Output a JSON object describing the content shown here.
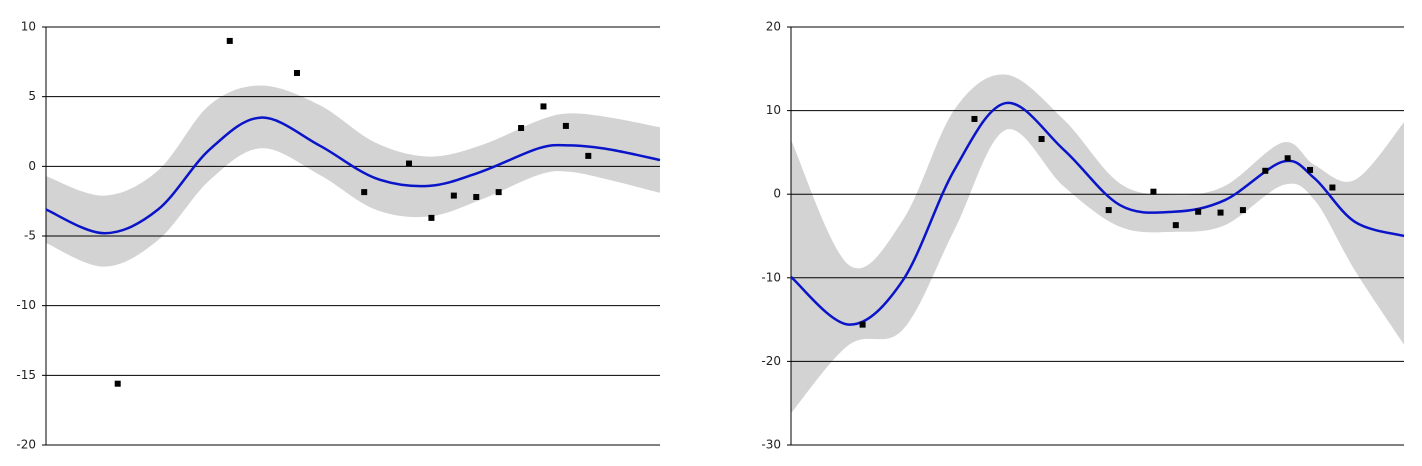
{
  "charts": [
    {
      "chart_data": {
        "type": "scatter",
        "ylim": [
          -20,
          10
        ],
        "yticks": [
          -20,
          -15,
          -10,
          -5,
          0,
          5,
          10
        ],
        "xlim": [
          -3.2,
          24.2
        ],
        "grid": true,
        "points": {
          "color": "#000000",
          "x": [
            0,
            5,
            8,
            11,
            13,
            14,
            15,
            16,
            17,
            18,
            19,
            20,
            21
          ],
          "y": [
            -15.6,
            9.0,
            6.7,
            -1.85,
            0.2,
            -3.7,
            -2.1,
            -2.2,
            -1.85,
            2.75,
            4.3,
            2.9,
            0.75
          ]
        },
        "fit": {
          "color": "#0a14c8",
          "band_color": "#d3d3d3",
          "x": [
            -3.2,
            -0.6,
            1.8,
            4.1,
            6.4,
            9,
            11.5,
            13.9,
            16.2,
            18.8,
            20.2,
            22,
            24.2
          ],
          "y": [
            -3.1,
            -4.8,
            -3.1,
            1.2,
            3.5,
            1.5,
            -0.85,
            -1.4,
            -0.4,
            1.3,
            1.5,
            1.2,
            0.45
          ],
          "upper": [
            -0.7,
            -2.1,
            -0.3,
            4.4,
            5.8,
            4.4,
            1.7,
            0.7,
            1.5,
            3.3,
            3.8,
            3.5,
            2.8
          ],
          "lower": [
            -5.5,
            -7.2,
            -5.3,
            -1,
            1.3,
            -0.6,
            -3.1,
            -3.6,
            -2.4,
            -0.6,
            -0.4,
            -1,
            -1.9
          ]
        }
      }
    },
    {
      "chart_data": {
        "type": "scatter",
        "ylim": [
          -30,
          20
        ],
        "yticks": [
          -30,
          -20,
          -10,
          0,
          10,
          20
        ],
        "xlim": [
          -3.2,
          24.2
        ],
        "grid": true,
        "points": {
          "color": "#000000",
          "x": [
            0,
            5,
            8,
            11,
            13,
            14,
            15,
            16,
            17,
            18,
            19,
            20,
            21
          ],
          "y": [
            -15.6,
            9.0,
            6.6,
            -1.9,
            0.3,
            -3.7,
            -2.1,
            -2.2,
            -1.9,
            2.8,
            4.3,
            2.9,
            0.8
          ]
        },
        "fit": {
          "color": "#0a14c8",
          "band_color": "#d3d3d3",
          "x": [
            -3.2,
            -0.6,
            1.8,
            4.1,
            6.4,
            9,
            11.5,
            13.9,
            16.2,
            18.8,
            20.2,
            22,
            24.2
          ],
          "y": [
            -9.9,
            -15.6,
            -10.3,
            2.9,
            10.9,
            5.3,
            -1.3,
            -2.1,
            -0.7,
            3.9,
            1.9,
            -3.3,
            -5
          ],
          "upper": [
            6.5,
            -8.5,
            -3.1,
            10.1,
            14.3,
            8.9,
            1.3,
            -0.1,
            1,
            6.2,
            3.5,
            1.7,
            8.6
          ],
          "lower": [
            -26.2,
            -18,
            -16.2,
            -4.3,
            7.7,
            0.9,
            -3.9,
            -4.5,
            -3.7,
            1.1,
            -0.7,
            -9.1,
            -18
          ]
        }
      }
    }
  ]
}
